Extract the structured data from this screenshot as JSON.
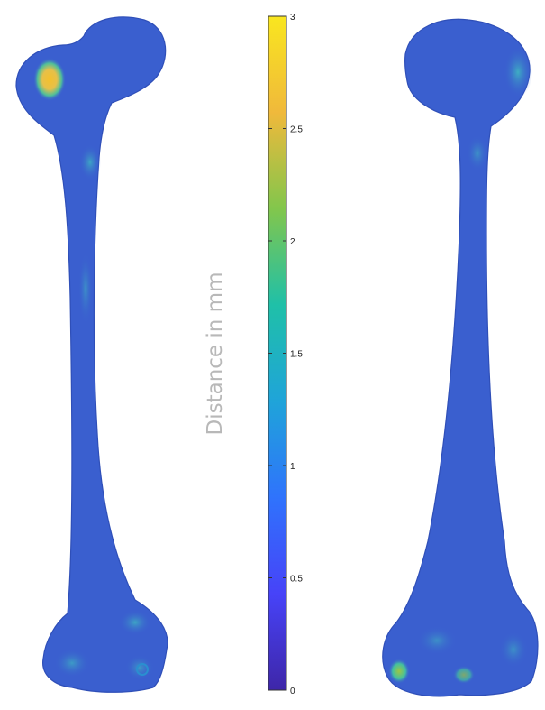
{
  "colorbar": {
    "label": "Distance in mm",
    "range": [
      0,
      3
    ],
    "ticks": [
      {
        "value": 0,
        "label": "0"
      },
      {
        "value": 0.5,
        "label": "0.5"
      },
      {
        "value": 1,
        "label": "1"
      },
      {
        "value": 1.5,
        "label": "1.5"
      },
      {
        "value": 2,
        "label": "2"
      },
      {
        "value": 2.5,
        "label": "2.5"
      },
      {
        "value": 3,
        "label": "3"
      }
    ],
    "colormap": [
      "#3e26a8",
      "#4743f8",
      "#2f73fc",
      "#1fa4d9",
      "#1fc0a8",
      "#82c64c",
      "#f0b93b",
      "#f9e61f"
    ]
  },
  "bones": {
    "base_color": "#3a5fcf",
    "hotspot_color": "#f2c230"
  }
}
